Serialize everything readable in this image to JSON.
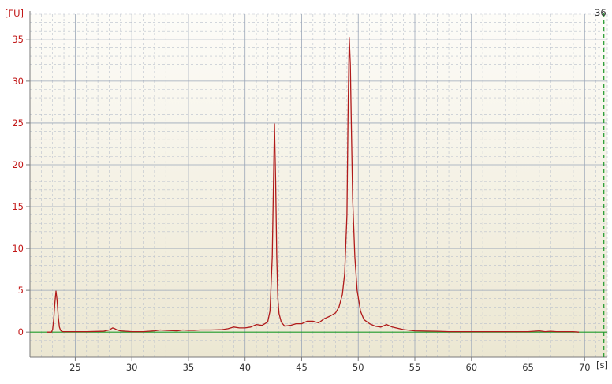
{
  "chart_data": {
    "type": "line",
    "y_unit_label": "[FU]",
    "x_unit_label": "[s]",
    "top_right_label": "36",
    "xlim": [
      21,
      72
    ],
    "ylim": [
      -3,
      38
    ],
    "x_ticks": [
      25,
      30,
      35,
      40,
      45,
      50,
      55,
      60,
      65,
      70
    ],
    "y_ticks": [
      0,
      5,
      10,
      15,
      20,
      25,
      30,
      35
    ],
    "grid": true,
    "colors": {
      "series": "#b01a1a",
      "baseline": "#1f9a2a",
      "ytick_labels": "#c21818",
      "xtick_labels": "#333333",
      "grid_solid": "#9aa6b8",
      "grid_dashed": "#b9c0cc",
      "background_top": "#fdfcf8",
      "background_bottom": "#ece7d2"
    },
    "baseline_y": 0,
    "marker_x": 71.7,
    "series": [
      {
        "x": [
          22.5,
          22.9,
          23.0,
          23.1,
          23.2,
          23.3,
          23.4,
          23.5,
          23.6,
          23.7,
          23.8,
          23.9,
          24.0,
          24.2,
          24.5,
          25.0,
          26.0,
          27.5,
          28.0,
          28.3,
          28.5,
          28.7,
          29.0,
          29.5,
          30.0,
          31.0,
          32.0,
          32.5,
          33.0,
          34.0,
          34.5,
          35.0,
          35.5,
          36.0,
          37.0,
          38.0,
          38.5,
          39.0,
          39.5,
          40.0,
          40.5,
          41.0,
          41.5,
          42.0,
          42.2,
          42.4,
          42.5,
          42.6,
          42.7,
          42.8,
          42.9,
          43.0,
          43.2,
          43.5,
          44.0,
          44.5,
          45.0,
          45.5,
          46.0,
          46.5,
          47.0,
          47.5,
          48.0,
          48.3,
          48.6,
          48.8,
          49.0,
          49.1,
          49.2,
          49.3,
          49.4,
          49.5,
          49.7,
          49.9,
          50.2,
          50.5,
          51.0,
          51.5,
          52.0,
          52.5,
          53.0,
          54.0,
          55.0,
          57.0,
          58.0,
          60.0,
          62.0,
          64.0,
          65.0,
          66.0,
          66.5,
          67.0,
          67.5,
          68.0,
          69.0,
          69.5
        ],
        "values": [
          0,
          0,
          0.3,
          1.5,
          3.5,
          4.9,
          3.8,
          1.8,
          0.6,
          0.2,
          0.1,
          0.05,
          0.05,
          0.05,
          0.05,
          0.05,
          0.05,
          0.1,
          0.25,
          0.5,
          0.4,
          0.25,
          0.15,
          0.1,
          0.05,
          0.05,
          0.15,
          0.25,
          0.2,
          0.15,
          0.25,
          0.2,
          0.2,
          0.25,
          0.25,
          0.3,
          0.4,
          0.6,
          0.5,
          0.5,
          0.6,
          0.9,
          0.8,
          1.2,
          2.5,
          9.0,
          17.0,
          24.9,
          18.0,
          9.0,
          4.0,
          2.2,
          1.2,
          0.7,
          0.8,
          1.0,
          1.0,
          1.3,
          1.3,
          1.1,
          1.6,
          1.9,
          2.3,
          3.0,
          4.5,
          7.0,
          14.0,
          26.0,
          35.2,
          32.0,
          24.0,
          16.0,
          9.0,
          5.0,
          2.5,
          1.5,
          1.0,
          0.7,
          0.6,
          0.9,
          0.6,
          0.3,
          0.15,
          0.1,
          0.05,
          0.05,
          0.05,
          0.05,
          0.05,
          0.15,
          0.05,
          0.1,
          0.05,
          0.05,
          0.05,
          0
        ]
      }
    ]
  }
}
